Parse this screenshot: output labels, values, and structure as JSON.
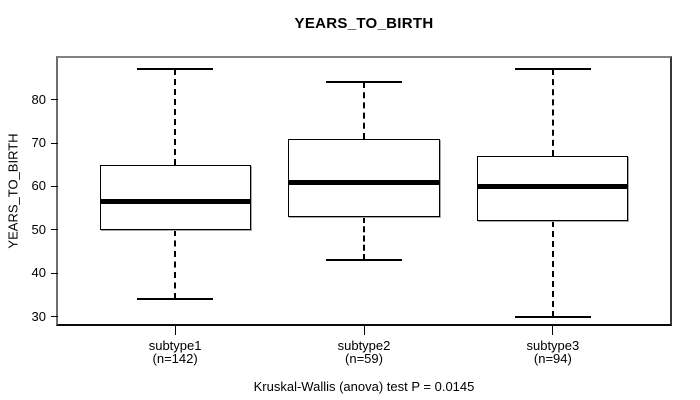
{
  "chart_data": {
    "type": "boxplot",
    "title": "YEARS_TO_BIRTH",
    "ylabel": "YEARS_TO_BIRTH",
    "annotation": "Kruskal-Wallis (anova) test P = 0.0145",
    "categories": [
      "subtype1",
      "subtype2",
      "subtype3"
    ],
    "category_sublabels": [
      "(n=142)",
      "(n=59)",
      "(n=94)"
    ],
    "counts": [
      142,
      59,
      94
    ],
    "series": [
      {
        "name": "subtype1",
        "n": 142,
        "min": 34,
        "q1": 50,
        "median": 56.5,
        "q3": 65,
        "max": 87
      },
      {
        "name": "subtype2",
        "n": 59,
        "min": 43,
        "q1": 53,
        "median": 61,
        "q3": 71,
        "max": 84
      },
      {
        "name": "subtype3",
        "n": 94,
        "min": 30,
        "q1": 52,
        "median": 60,
        "q3": 67,
        "max": 87
      }
    ],
    "yticks": [
      30,
      40,
      50,
      60,
      70,
      80
    ],
    "ylim": [
      28.3,
      89.6
    ],
    "xlim": [
      0.38,
      3.62
    ],
    "positions": [
      1,
      2,
      3
    ],
    "box_width": 0.8,
    "cap_width_ratio": 0.5,
    "grid": "off",
    "legend": "none",
    "colors": {
      "box_fill": "#ffffff",
      "line": "#000000",
      "frame_shadow": "#828282",
      "background": "#ffffff"
    }
  }
}
